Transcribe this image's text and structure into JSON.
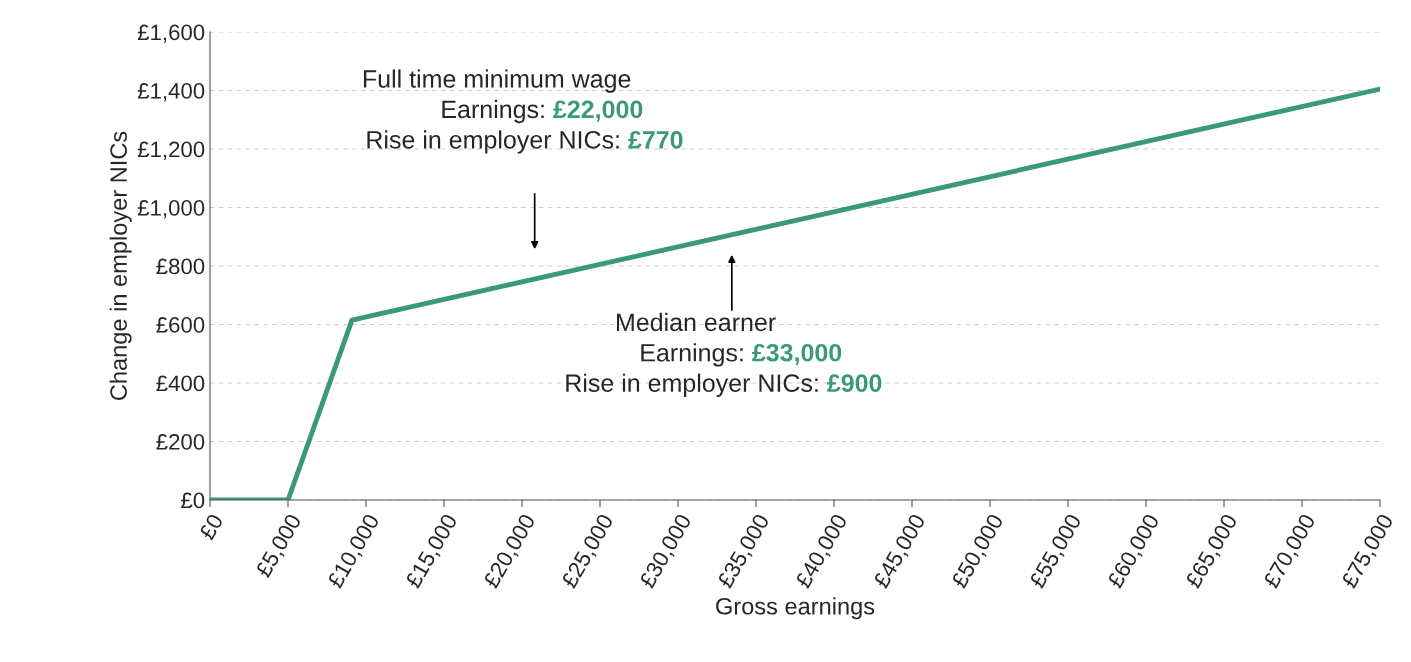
{
  "chart_data": {
    "type": "line",
    "xlabel": "Gross earnings",
    "ylabel": "Change in employer NICs",
    "x": [
      0,
      5000,
      9100,
      75000
    ],
    "series": [
      {
        "color": "#3a9a76",
        "values": [
          0,
          0,
          615,
          1405
        ]
      }
    ],
    "xlim": [
      0,
      75000
    ],
    "xticks": [
      {
        "value": 0,
        "label": "£0"
      },
      {
        "value": 5000,
        "label": "£5,000"
      },
      {
        "value": 10000,
        "label": "£10,000"
      },
      {
        "value": 15000,
        "label": "£15,000"
      },
      {
        "value": 20000,
        "label": "£20,000"
      },
      {
        "value": 25000,
        "label": "£25,000"
      },
      {
        "value": 30000,
        "label": "£30,000"
      },
      {
        "value": 35000,
        "label": "£35,000"
      },
      {
        "value": 40000,
        "label": "£40,000"
      },
      {
        "value": 45000,
        "label": "£45,000"
      },
      {
        "value": 50000,
        "label": "£50,000"
      },
      {
        "value": 55000,
        "label": "£55,000"
      },
      {
        "value": 60000,
        "label": "£60,000"
      },
      {
        "value": 65000,
        "label": "£65,000"
      },
      {
        "value": 70000,
        "label": "£70,000"
      },
      {
        "value": 75000,
        "label": "£75,000"
      }
    ],
    "ylim": [
      0,
      1600
    ],
    "yticks": [
      {
        "value": 0,
        "label": "£0"
      },
      {
        "value": 200,
        "label": "£200"
      },
      {
        "value": 400,
        "label": "£400"
      },
      {
        "value": 600,
        "label": "£600"
      },
      {
        "value": 800,
        "label": "£800"
      },
      {
        "value": 1000,
        "label": "£1,000"
      },
      {
        "value": 1200,
        "label": "£1,200"
      },
      {
        "value": 1400,
        "label": "£1,400"
      },
      {
        "value": 1600,
        "label": "£1,600"
      }
    ],
    "grid": "y",
    "marker": "none",
    "line_style": "solid",
    "annotations": [
      "Full time minimum wage",
      "Earnings:",
      "£22,000",
      "Rise in employer NICs:",
      "£770",
      "Median earner",
      "Earnings:",
      "£33,000",
      "Rise in employer NICs:",
      "£900"
    ]
  }
}
